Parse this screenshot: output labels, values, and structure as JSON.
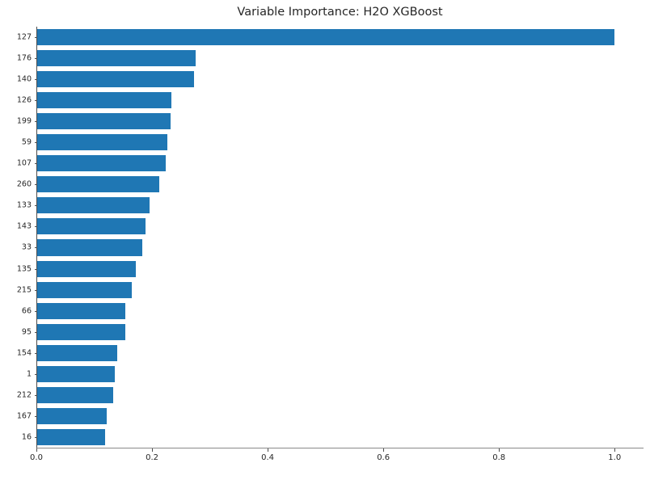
{
  "chart_data": {
    "type": "bar",
    "orientation": "horizontal",
    "title": "Variable Importance: H2O XGBoost",
    "xlabel": "",
    "ylabel": "",
    "categories": [
      "127",
      "176",
      "140",
      "126",
      "199",
      "59",
      "107",
      "260",
      "133",
      "143",
      "33",
      "135",
      "215",
      "66",
      "95",
      "154",
      "1",
      "212",
      "167",
      "16"
    ],
    "values": [
      1.0,
      0.275,
      0.272,
      0.232,
      0.231,
      0.225,
      0.223,
      0.211,
      0.195,
      0.187,
      0.182,
      0.171,
      0.164,
      0.153,
      0.152,
      0.138,
      0.135,
      0.131,
      0.121,
      0.118
    ],
    "xticks": [
      0.0,
      0.2,
      0.4,
      0.6,
      0.8,
      1.0
    ],
    "xtick_labels": [
      "0.0",
      "0.2",
      "0.4",
      "0.6",
      "0.8",
      "1.0"
    ],
    "xlim": [
      0,
      1.05
    ],
    "grid": false,
    "legend_position": "none",
    "bar_color": "#1f77b4",
    "background_color": "#ffffff",
    "axis_color": "#4d4d4d",
    "text_color": "#262626"
  }
}
